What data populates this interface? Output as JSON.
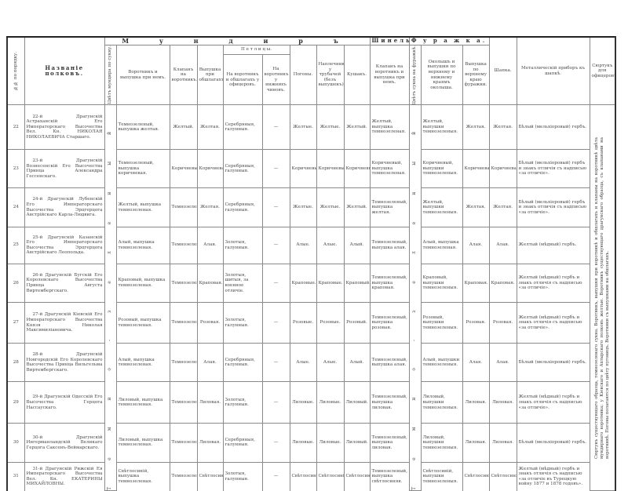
{
  "header": {
    "num": "№№ по порядку.",
    "name": "Названіе полковъ.",
    "uniform": "М у н д и р ъ",
    "uniform_color": "Цвѣтъ мундира по сукну.",
    "collar": "Воротникъ и выпушка при немъ.",
    "collar_patches": "Клапанъ на воротникъ.",
    "cuff_piping": "Выпушка при обшлагахъ.",
    "petlitsy": "П е т л и ц ы.",
    "petlitsy_officers": "На воротникъ и обшлагахъ у офицеровъ.",
    "petlitsy_lower": "На воротникъ у нижнихъ чиновъ.",
    "shoulder_straps": "Погоны.",
    "trumpeter_wings": "Наплечники у трубачей (безъ выпушекъ).",
    "sash": "Кушакъ.",
    "greatcoat": "Шинель.",
    "greatcoat_patches": "Клапанъ на воротникъ и выпушка при немъ.",
    "cap": "Ф у р а ж к а.",
    "cap_color": "Цвѣтъ сукна на фуражкѣ.",
    "cap_band": "Околышъ и выпушки по верхнему и нижнему краямъ околыша.",
    "cap_crown_piping": "Выпушка по верхнему краю фуражки.",
    "shapka": "Шапка.",
    "metal_fittings": "Металлическій приборъ къ шапкѣ.",
    "frock_coat": "Сюртукъ для офицеровъ."
  },
  "uniform_color_letters": "Темно-зеленый",
  "cap_color_letters": "Темно-зеленый",
  "frock_coat_note": "Сюртукъ существующаго образца, темнозеленаго сукна. Воротникъ, выпушки при воротникѣ и обшлагахъ и клапаны на воротникѣ цвѣта мундирнаго воротника; у Кіевскаго и Ахтырскаго полковъ желтые. Воротникъ существующаго драгунскаго образца, съ клапанами на воротникѣ. Погоны полагаются по цвѣту пуговицъ. Воротники съ выпушками на обшлагахъ.",
  "rows": [
    {
      "num": "22",
      "name": "22-й Драгунскій Астраханскій Его Императорскаго Высочества Вел. Кн. НИКОЛАЯ НИКОЛАЕВИЧА Старшаго.",
      "collar": "Темнозеленый, выпушка желтая.",
      "patches": "Желтый.",
      "cuff": "Желтая.",
      "pet_off": "Серебряныя, галунныя.",
      "pet_low": "—",
      "straps": "Желтые.",
      "wings": "Желтые.",
      "sash": "Желтый.",
      "greatcoat": "Желтый, выпушка темнозеленая.",
      "band": "Желтый, выпушки темнозеленыя.",
      "crown": "Желтая.",
      "shapka": "Желтая.",
      "fittings": "Бѣлый (мельхіоровый) гербъ."
    },
    {
      "num": "23",
      "name": "23-й Драгунскій Вознесенскій Его Высочества Принца Александра Гессенскаго.",
      "collar": "Темнозеленый, выпушка коричневая.",
      "patches": "Коричневый.",
      "cuff": "Коричневая.",
      "pet_off": "Серебряныя, галунныя.",
      "pet_low": "—",
      "straps": "Коричневые.",
      "wings": "Коричневые.",
      "sash": "Коричневый.",
      "greatcoat": "Коричневый, выпушка темнозеленая.",
      "band": "Коричневый, выпушки темнозеленыя.",
      "crown": "Коричневая.",
      "shapka": "Коричневая.",
      "fittings": "Бѣлый (мельхіоровый) гербъ и знакъ отличія съ надписью «за отличіе»."
    },
    {
      "num": "24",
      "name": "24-й Драгунскій Лубенскій Его Императорскаго Высочества Эрцгерцога Австрійскаго Карла-Людвига.",
      "collar": "Желтый, выпушка темнозеленая.",
      "patches": "Темнозеленый.",
      "cuff": "Желтая.",
      "pet_off": "Серебряныя, галунныя.",
      "pet_low": "—",
      "straps": "Желтые.",
      "wings": "Желтые.",
      "sash": "Желтый.",
      "greatcoat": "Темнозеленый, выпушка желтая.",
      "band": "Желтый, выпушки темнозеленыя.",
      "crown": "Желтая.",
      "shapka": "Желтая.",
      "fittings": "Бѣлый (мельхіоровый) гербъ и знакъ отличія съ надписью «за отличіе»."
    },
    {
      "num": "25",
      "name": "25-й Драгунскій Казанскій Его Императорскаго Высочества Эрцгерцога Австрійскаго Леопольда.",
      "collar": "Алый, выпушка темнозеленая.",
      "patches": "Темнозеленый.",
      "cuff": "Алая.",
      "pet_off": "Золотыя, галунныя.",
      "pet_low": "—",
      "straps": "Алые.",
      "wings": "Алые.",
      "sash": "Алый.",
      "greatcoat": "Темнозеленый, выпушка алая.",
      "band": "Алый, выпушка темнозеленая.",
      "crown": "Алая.",
      "shapka": "Алая.",
      "fittings": "Желтый (мѣдный) гербъ."
    },
    {
      "num": "26",
      "name": "26-й Драгунскій Бугскій Его Королевскаго Высочества Принца Августа Виртембергскаго.",
      "collar": "Краповый, выпушка темнозеленая.",
      "patches": "Темнозеленый.",
      "cuff": "Краповая.",
      "pet_off": "Золотыя, шитыя, за военное отличіе.",
      "pet_low": "—",
      "straps": "Краповые.",
      "wings": "Краповые.",
      "sash": "Краповый.",
      "greatcoat": "Темнозеленый, выпушка краповая.",
      "band": "Краповый, выпушки темнозеленыя.",
      "crown": "Краповая.",
      "shapka": "Краповая.",
      "fittings": "Желтый (мѣдный) гербъ и знакъ отличія съ надписью «за отличіе»."
    },
    {
      "num": "27",
      "name": "27-й Драгунскій Кіевскій Его Императорскаго Высочества Князя Николая Максимиліановича.",
      "collar": "Розовый, выпушка темнозеленая.",
      "patches": "Темнозеленый.",
      "cuff": "Розовая.",
      "pet_off": "Золотыя, галунныя.",
      "pet_low": "—",
      "straps": "Розовые.",
      "wings": "Розовые.",
      "sash": "Розовый.",
      "greatcoat": "Темнозеленый, выпушка розовая.",
      "band": "Розовый, выпушки темнозеленыя.",
      "crown": "Розовая.",
      "shapka": "Розовая.",
      "fittings": "Желтый (мѣдный) гербъ и знакъ отличія съ надписью «за отличіе»."
    },
    {
      "num": "28",
      "name": "28-й Драгунскій Новгородскій Его Королевскаго Высочества Принца Вильгельма Виртембергскаго.",
      "collar": "Алый, выпушка темнозеленая.",
      "patches": "Темнозеленый.",
      "cuff": "Алая.",
      "pet_off": "Серебряныя, галунныя.",
      "pet_low": "—",
      "straps": "Алые.",
      "wings": "Алые.",
      "sash": "Алый.",
      "greatcoat": "Темнозеленый, выпушка алая.",
      "band": "Алый, выпушки темнозеленыя.",
      "crown": "Алая.",
      "shapka": "Алая.",
      "fittings": "Бѣлый (мельхіоровый) гербъ."
    },
    {
      "num": "29",
      "name": "29-й Драгунскій Одесскій Его Высочества Герцога Нассаускаго.",
      "collar": "Лиловый, выпушка темнозеленая.",
      "patches": "Темнозеленый.",
      "cuff": "Лиловая.",
      "pet_off": "Золотыя, галунныя.",
      "pet_low": "—",
      "straps": "Лиловые.",
      "wings": "Лиловые.",
      "sash": "Лиловый.",
      "greatcoat": "Темнозеленый, выпушка лиловая.",
      "band": "Лиловый, выпушки темнозеленыя.",
      "crown": "Лиловая.",
      "shapka": "Лиловая.",
      "fittings": "Желтый (мѣдный) гербъ и знакъ отличія съ надписью «за отличіе»."
    },
    {
      "num": "30",
      "name": "30-й Драгунскій Ингерманландскій Великаго Герцога Саксенъ-Веймарскаго.",
      "collar": "Лиловый, выпушка темнозеленая.",
      "patches": "Темнозеленый.",
      "cuff": "Лиловая.",
      "pet_off": "Серебряныя, галунныя.",
      "pet_low": "—",
      "straps": "Лиловые.",
      "wings": "Лиловые.",
      "sash": "Лиловый.",
      "greatcoat": "Темнозеленый, выпушка лиловая.",
      "band": "Лиловый, выпушки темнозеленыя.",
      "crown": "Лиловая.",
      "shapka": "Лиловая.",
      "fittings": "Бѣлый (мельхіоровый) гербъ."
    },
    {
      "num": "31",
      "name": "31-й Драгунскій Рижскій Ея Императорскаго Высочества Вел. Кн. ЕКАТЕРИНЫ МИХАЙЛОВНЫ.",
      "collar": "Свѣтлосиній, выпушка темнозеленая.",
      "patches": "Темнозеленый.",
      "cuff": "Свѣтлосиняя.",
      "pet_off": "Золотыя, галунныя.",
      "pet_low": "—",
      "straps": "Свѣтлосиніе.",
      "wings": "Свѣтлосиніе.",
      "sash": "Свѣтлосиній.",
      "greatcoat": "Темнозеленый, выпушка свѣтлосиняя.",
      "band": "Свѣтлосиній, выпушки темнозеленыя.",
      "crown": "Свѣтлосиняя.",
      "shapka": "Свѣтлосиняя.",
      "fittings": "Желтый (мѣдный) гербъ и знакъ отличія съ надписью «за отличіе въ Турецкую войну 1877 и 1878 годовъ»."
    }
  ]
}
